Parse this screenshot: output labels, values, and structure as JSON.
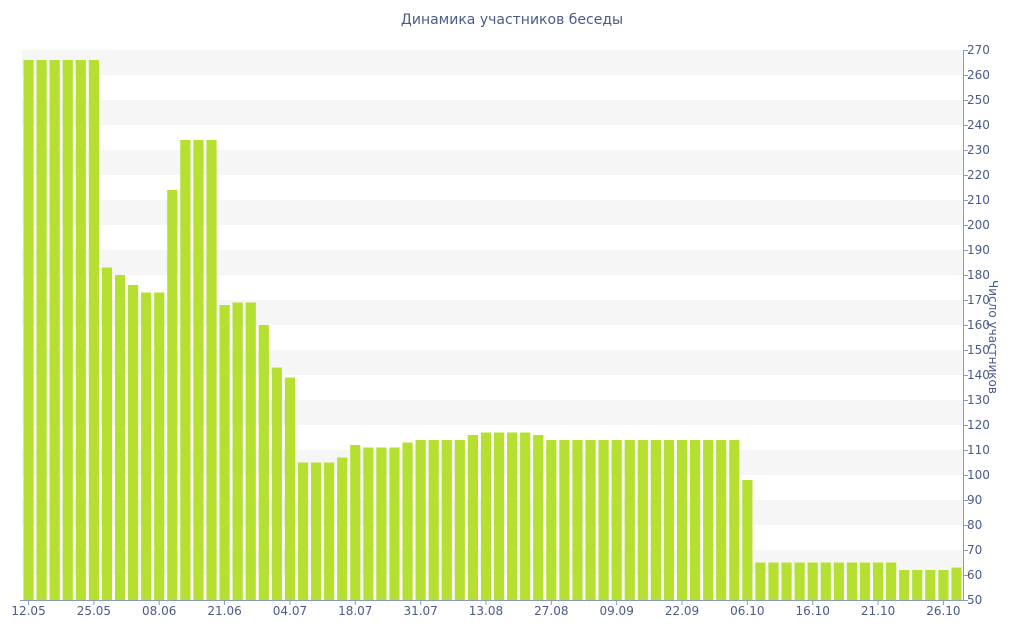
{
  "chart_data": {
    "type": "bar",
    "title": "Динамика участников беседы",
    "xlabel": "",
    "ylabel": "Число участников",
    "ylim": [
      50,
      270
    ],
    "yticks": [
      50,
      60,
      70,
      80,
      90,
      100,
      110,
      120,
      130,
      140,
      150,
      160,
      170,
      180,
      190,
      200,
      210,
      220,
      230,
      240,
      250,
      260,
      270
    ],
    "xtick_labels": [
      "12.05",
      "25.05",
      "08.06",
      "21.06",
      "04.07",
      "18.07",
      "31.07",
      "13.08",
      "27.08",
      "09.09",
      "22.09",
      "06.10",
      "16.10",
      "21.10",
      "26.10"
    ],
    "xtick_indices": [
      0,
      5,
      10,
      15,
      20,
      25,
      30,
      35,
      40,
      45,
      50,
      55,
      60,
      65,
      70
    ],
    "values": [
      266,
      266,
      266,
      266,
      266,
      266,
      183,
      180,
      176,
      173,
      173,
      214,
      234,
      234,
      234,
      168,
      169,
      169,
      160,
      143,
      139,
      105,
      105,
      105,
      107,
      112,
      111,
      111,
      111,
      113,
      114,
      114,
      114,
      114,
      116,
      117,
      117,
      117,
      117,
      116,
      114,
      114,
      114,
      114,
      114,
      114,
      114,
      114,
      114,
      114,
      114,
      114,
      114,
      114,
      114,
      98,
      65,
      65,
      65,
      65,
      65,
      65,
      65,
      65,
      65,
      65,
      65,
      62,
      62,
      62,
      62,
      63
    ],
    "bar_color": "#b5e032",
    "band_color": "#f6f6f6",
    "axis_color": "#8a9ab8",
    "text_color": "#4a5a8a",
    "grid": "alternating-bands",
    "y_axis_position": "right",
    "legend": "none"
  }
}
